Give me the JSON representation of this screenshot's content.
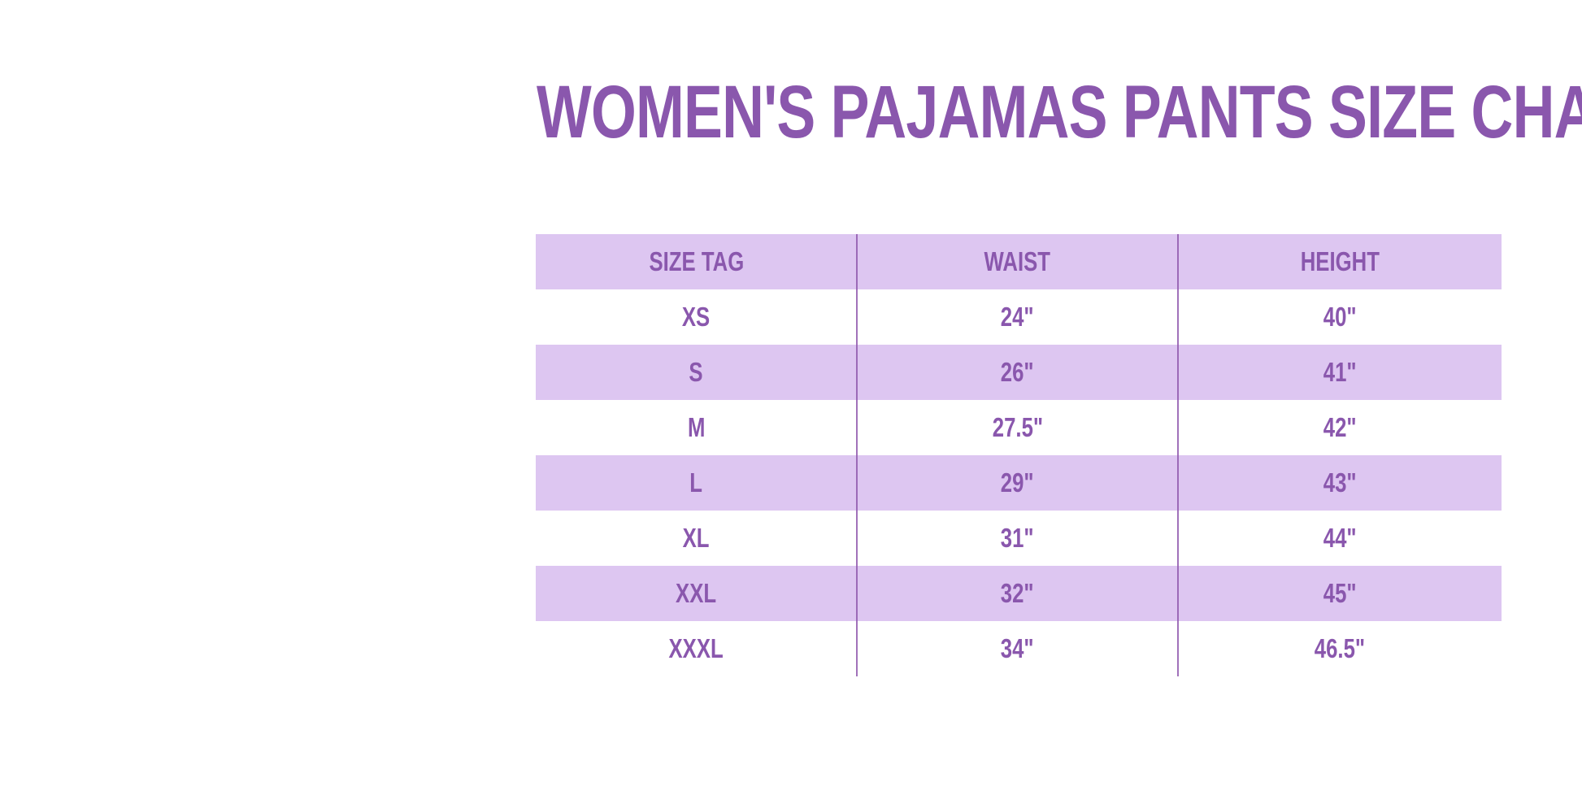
{
  "title": {
    "text": "WOMEN'S PAJAMAS PANTS SIZE CHART"
  },
  "colors": {
    "text_purple": "#8a57ad",
    "stripe_lavender": "#ddc6f1",
    "divider_purple": "#9059ae",
    "background": "#ffffff"
  },
  "table": {
    "columns": [
      "SIZE TAG",
      "WAIST",
      "HEIGHT"
    ],
    "rows": [
      {
        "size_tag": "XS",
        "waist": "24\"",
        "height": "40\""
      },
      {
        "size_tag": "S",
        "waist": "26\"",
        "height": "41\""
      },
      {
        "size_tag": "M",
        "waist": "27.5\"",
        "height": "42\""
      },
      {
        "size_tag": "L",
        "waist": "29\"",
        "height": "43\""
      },
      {
        "size_tag": "XL",
        "waist": "31\"",
        "height": "44\""
      },
      {
        "size_tag": "XXL",
        "waist": "32\"",
        "height": "45\""
      },
      {
        "size_tag": "XXXL",
        "waist": "34\"",
        "height": "46.5\""
      }
    ]
  },
  "chart_data": {
    "type": "table",
    "title": "WOMEN'S PAJAMAS PANTS SIZE CHART",
    "columns": [
      "SIZE TAG",
      "WAIST",
      "HEIGHT"
    ],
    "rows": [
      [
        "XS",
        "24\"",
        "40\""
      ],
      [
        "S",
        "26\"",
        "41\""
      ],
      [
        "M",
        "27.5\"",
        "42\""
      ],
      [
        "L",
        "29\"",
        "43\""
      ],
      [
        "XL",
        "31\"",
        "44\""
      ],
      [
        "XXL",
        "32\"",
        "45\""
      ],
      [
        "XXXL",
        "34\"",
        "46.5\""
      ]
    ],
    "layout": {
      "stripe_pattern": "header and alternate rows lavender, others white",
      "grid": "vertical dividers only, equal thirds columns",
      "text_alignment": "center"
    }
  }
}
